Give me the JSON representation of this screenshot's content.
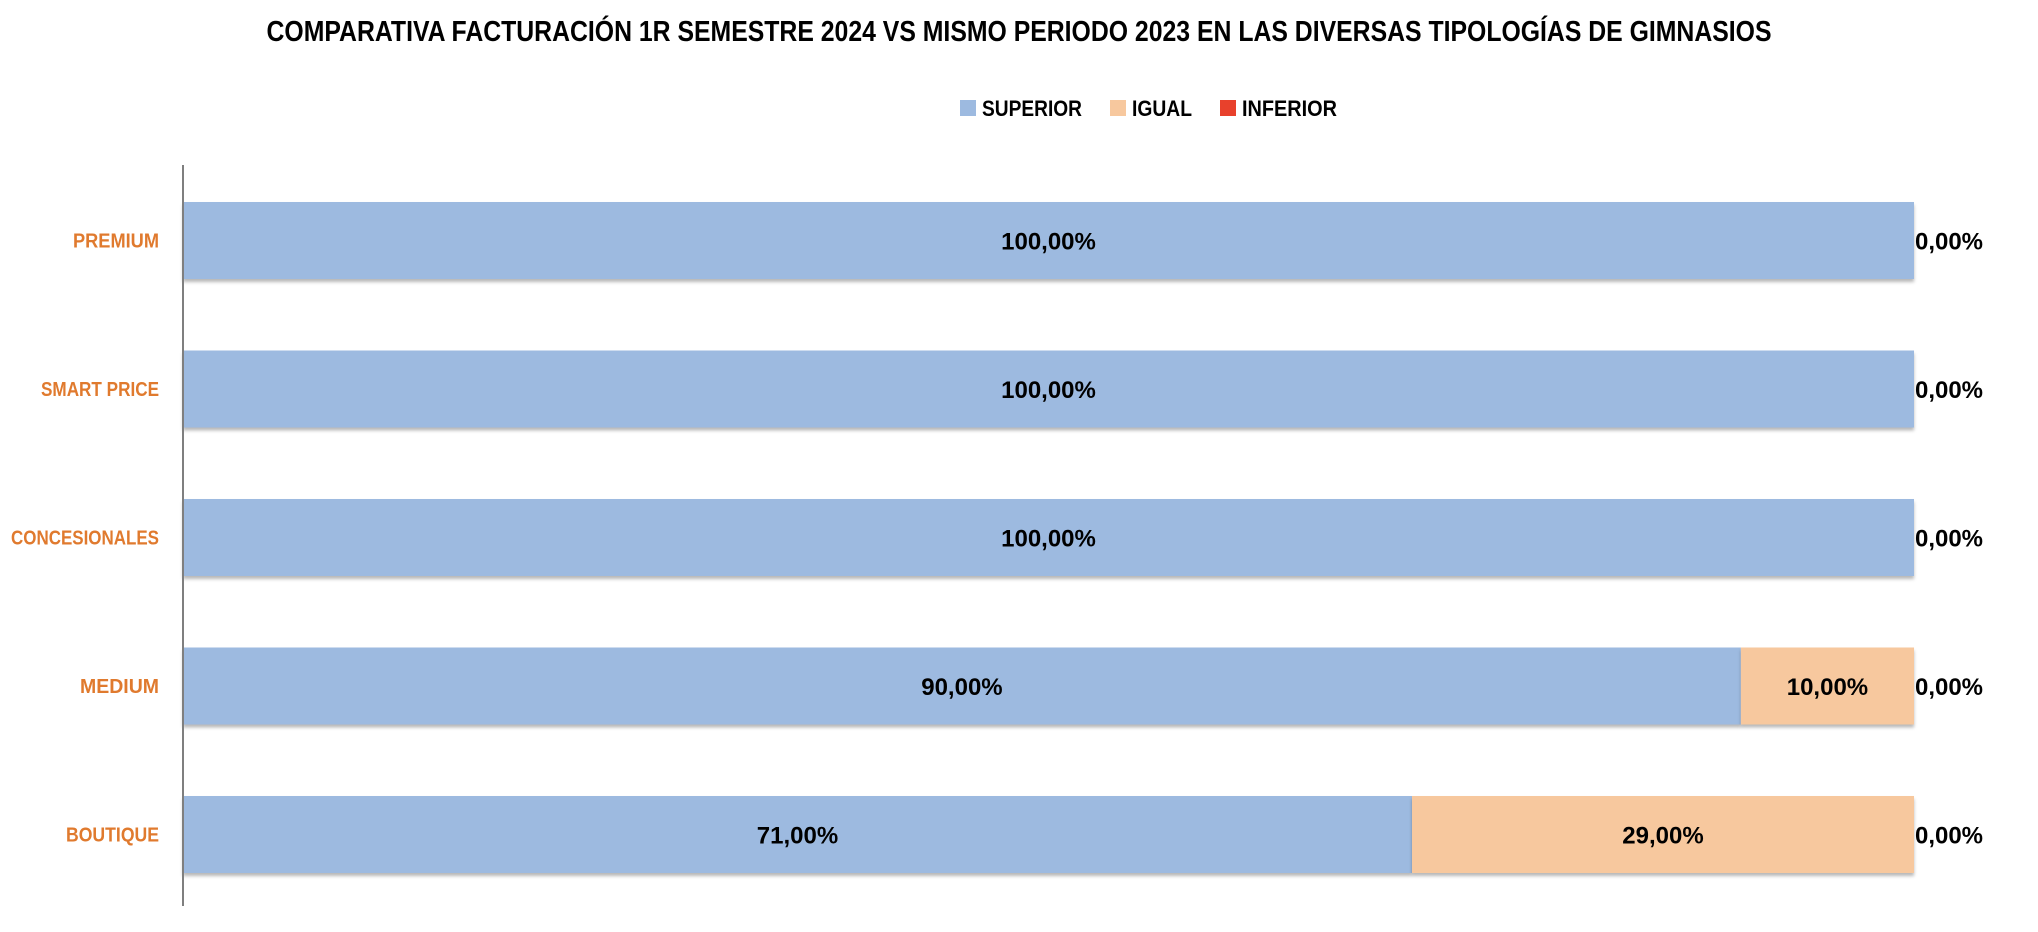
{
  "chart_data": {
    "type": "bar",
    "orientation": "horizontal",
    "stacked": true,
    "title": "COMPARATIVA FACTURACIÓN 1R SEMESTRE 2024 VS MISMO PERIODO 2023 EN LAS DIVERSAS TIPOLOGÍAS DE GIMNASIOS",
    "legend_position": "top",
    "categories": [
      "PREMIUM",
      "SMART PRICE",
      "CONCESIONALES",
      "MEDIUM",
      "BOUTIQUE"
    ],
    "series": [
      {
        "name": "SUPERIOR",
        "color": "#9DBAE0",
        "values": [
          100,
          100,
          100,
          90,
          71
        ],
        "labels": [
          "100,00%",
          "100,00%",
          "100,00%",
          "90,00%",
          "71,00%"
        ]
      },
      {
        "name": "IGUAL",
        "color": "#F7C89E",
        "values": [
          0,
          0,
          0,
          10,
          29
        ],
        "labels": [
          "",
          "",
          "",
          "10,00%",
          "29,00%"
        ]
      },
      {
        "name": "INFERIOR",
        "color": "#E8412C",
        "values": [
          0,
          0,
          0,
          0,
          0
        ],
        "labels": [
          "0,00%",
          "0,00%",
          "0,00%",
          "0,00%",
          "0,00%"
        ]
      }
    ],
    "xlim": [
      0,
      100
    ],
    "xlabel": "",
    "ylabel": "",
    "grid": false,
    "category_label_color": "#E07A2E",
    "axis_color": "#7F7F7F"
  }
}
